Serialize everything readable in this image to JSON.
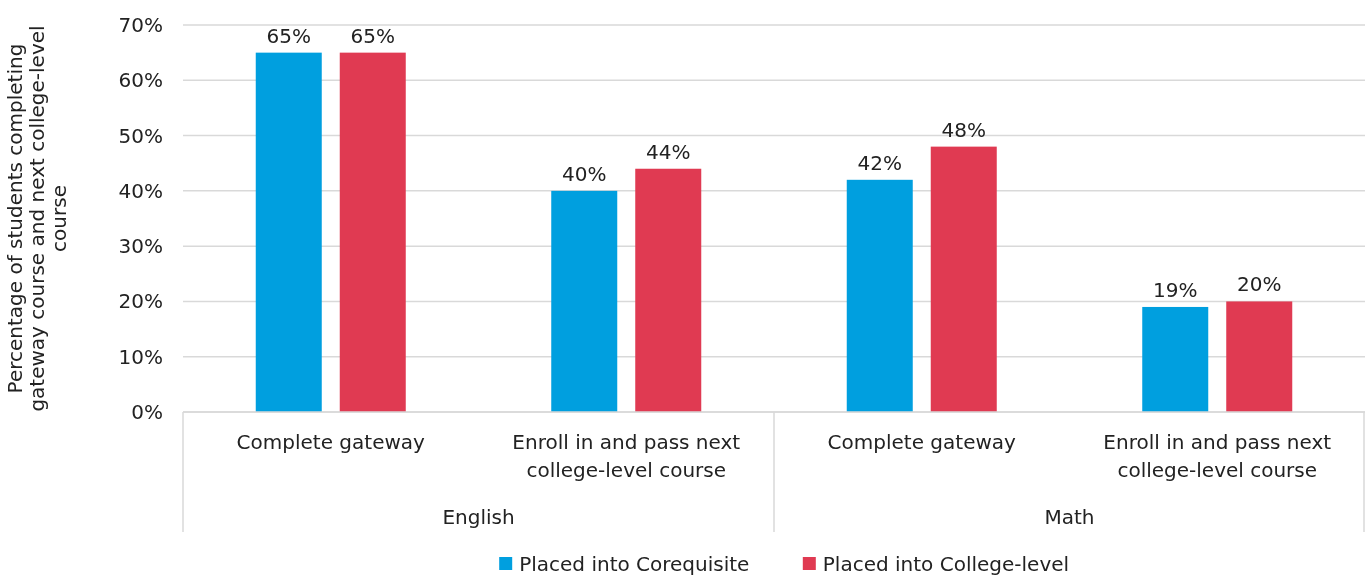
{
  "chart_data": {
    "type": "bar",
    "ylabel": "Percentage of students completing gateway course and next college-level course",
    "categories": [
      "Complete gateway",
      "Enroll in and pass next college-level course",
      "Complete gateway",
      "Enroll in and pass next college-level course"
    ],
    "series": [
      {
        "name": "Placed into Corequisite",
        "color": "#009fdf",
        "values": [
          65,
          40,
          42,
          19
        ],
        "value_labels": [
          "65%",
          "40%",
          "42%",
          "19%"
        ]
      },
      {
        "name": "Placed into College-level",
        "color": "#e03a52",
        "values": [
          65,
          44,
          48,
          20
        ],
        "value_labels": [
          "65%",
          "44%",
          "48%",
          "20%"
        ]
      }
    ],
    "annotations": [
      "English",
      "Math"
    ],
    "ylim": [
      0,
      70
    ],
    "yticks": [
      {
        "value": 0,
        "label": "0%"
      },
      {
        "value": 10,
        "label": "10%"
      },
      {
        "value": 20,
        "label": "20%"
      },
      {
        "value": 30,
        "label": "30%"
      },
      {
        "value": 40,
        "label": "40%"
      },
      {
        "value": 50,
        "label": "50%"
      },
      {
        "value": 60,
        "label": "60%"
      },
      {
        "value": 70,
        "label": "70%"
      }
    ],
    "grid": "y",
    "legend": "bottom"
  }
}
